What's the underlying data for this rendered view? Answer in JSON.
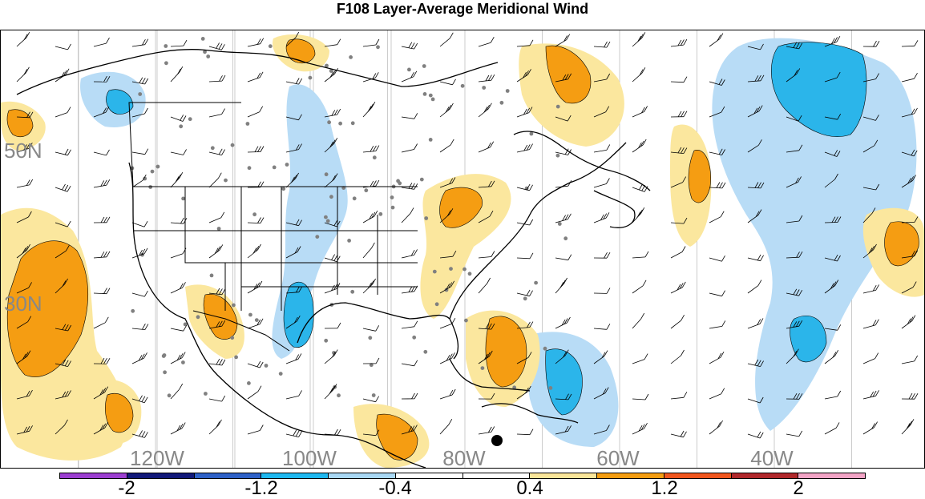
{
  "title": "F108 Layer-Average Meridional Wind",
  "map": {
    "lon_labels": [
      "120W",
      "100W",
      "80W",
      "60W",
      "40W"
    ],
    "lat_labels": [
      "50N",
      "30N"
    ],
    "label_color": "#888888",
    "gridline_color": "#bfbfbf",
    "coastline_color": "#000000",
    "station_dot_color": "#808080",
    "marker": "black-dot"
  },
  "colorbar": {
    "tick_labels": [
      "-2",
      "-1.2",
      "-0.4",
      "0.4",
      "1.2",
      "2"
    ],
    "colors": [
      "#9c3fd1",
      "#12197a",
      "#2f62c8",
      "#1fb8f0",
      "#a9d8f5",
      "#ffffff",
      "#ffffff",
      "#fbe69a",
      "#f59d12",
      "#f1561e",
      "#b0282b",
      "#f3a4c6"
    ]
  },
  "palette": {
    "neg_light": "#b8dcf6",
    "neg_mid": "#2bb5ea",
    "pos_light": "#fbe79e",
    "pos_mid": "#f59d12"
  }
}
